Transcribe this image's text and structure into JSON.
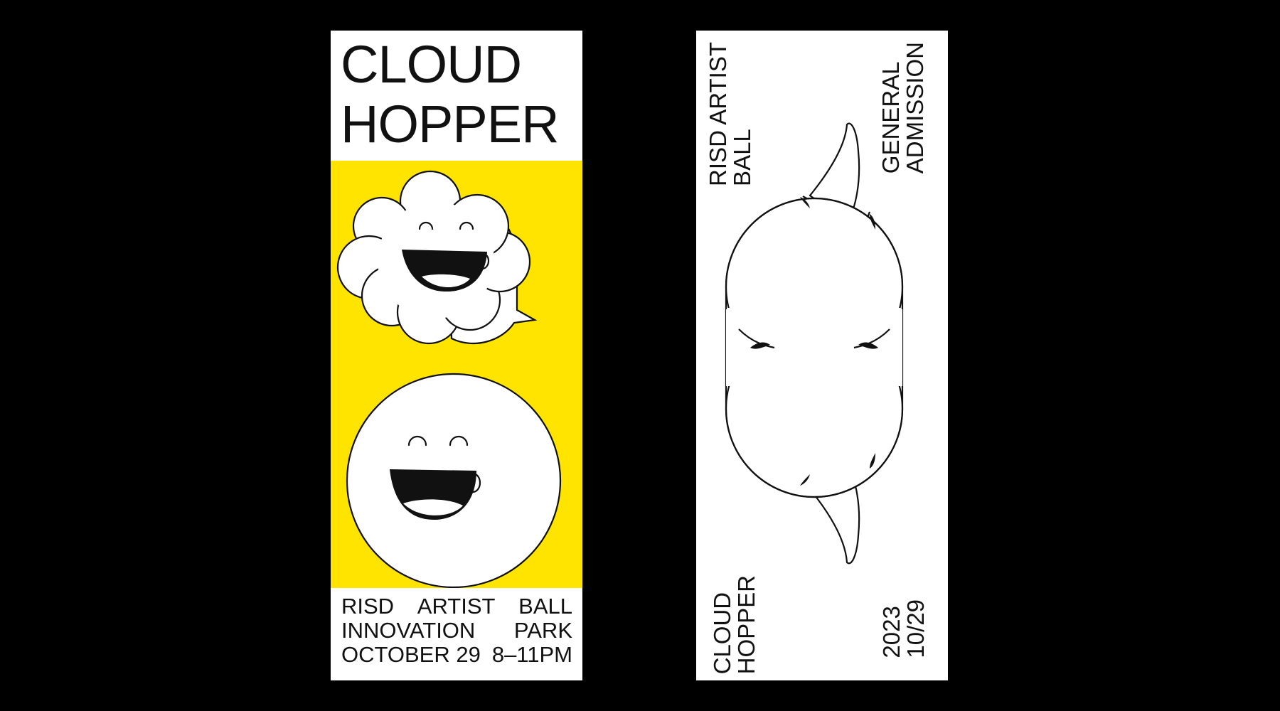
{
  "front_ticket": {
    "title_lines": [
      "CLOUD",
      "HOPPER"
    ],
    "info": {
      "row1": [
        "RISD",
        "ARTIST",
        "BALL"
      ],
      "row2": [
        "INNOVATION",
        "PARK"
      ],
      "row3": [
        "OCTOBER 29",
        "8–11PM"
      ]
    },
    "illustration": "cloud-and-sphere-smiling-faces-icon",
    "panel_color": "#FFE400"
  },
  "back_ticket": {
    "event_lines": [
      "RISD ARTIST",
      "BALL"
    ],
    "admission_lines": [
      "GENERAL",
      "ADMISSION"
    ],
    "title_lines": [
      "CLOUD",
      "HOPPER"
    ],
    "date_lines": [
      "2023",
      "10/29"
    ],
    "illustration": "cloud-outline-icon"
  },
  "colors": {
    "background": "#000000",
    "ticket": "#ffffff",
    "ink": "#111111"
  }
}
